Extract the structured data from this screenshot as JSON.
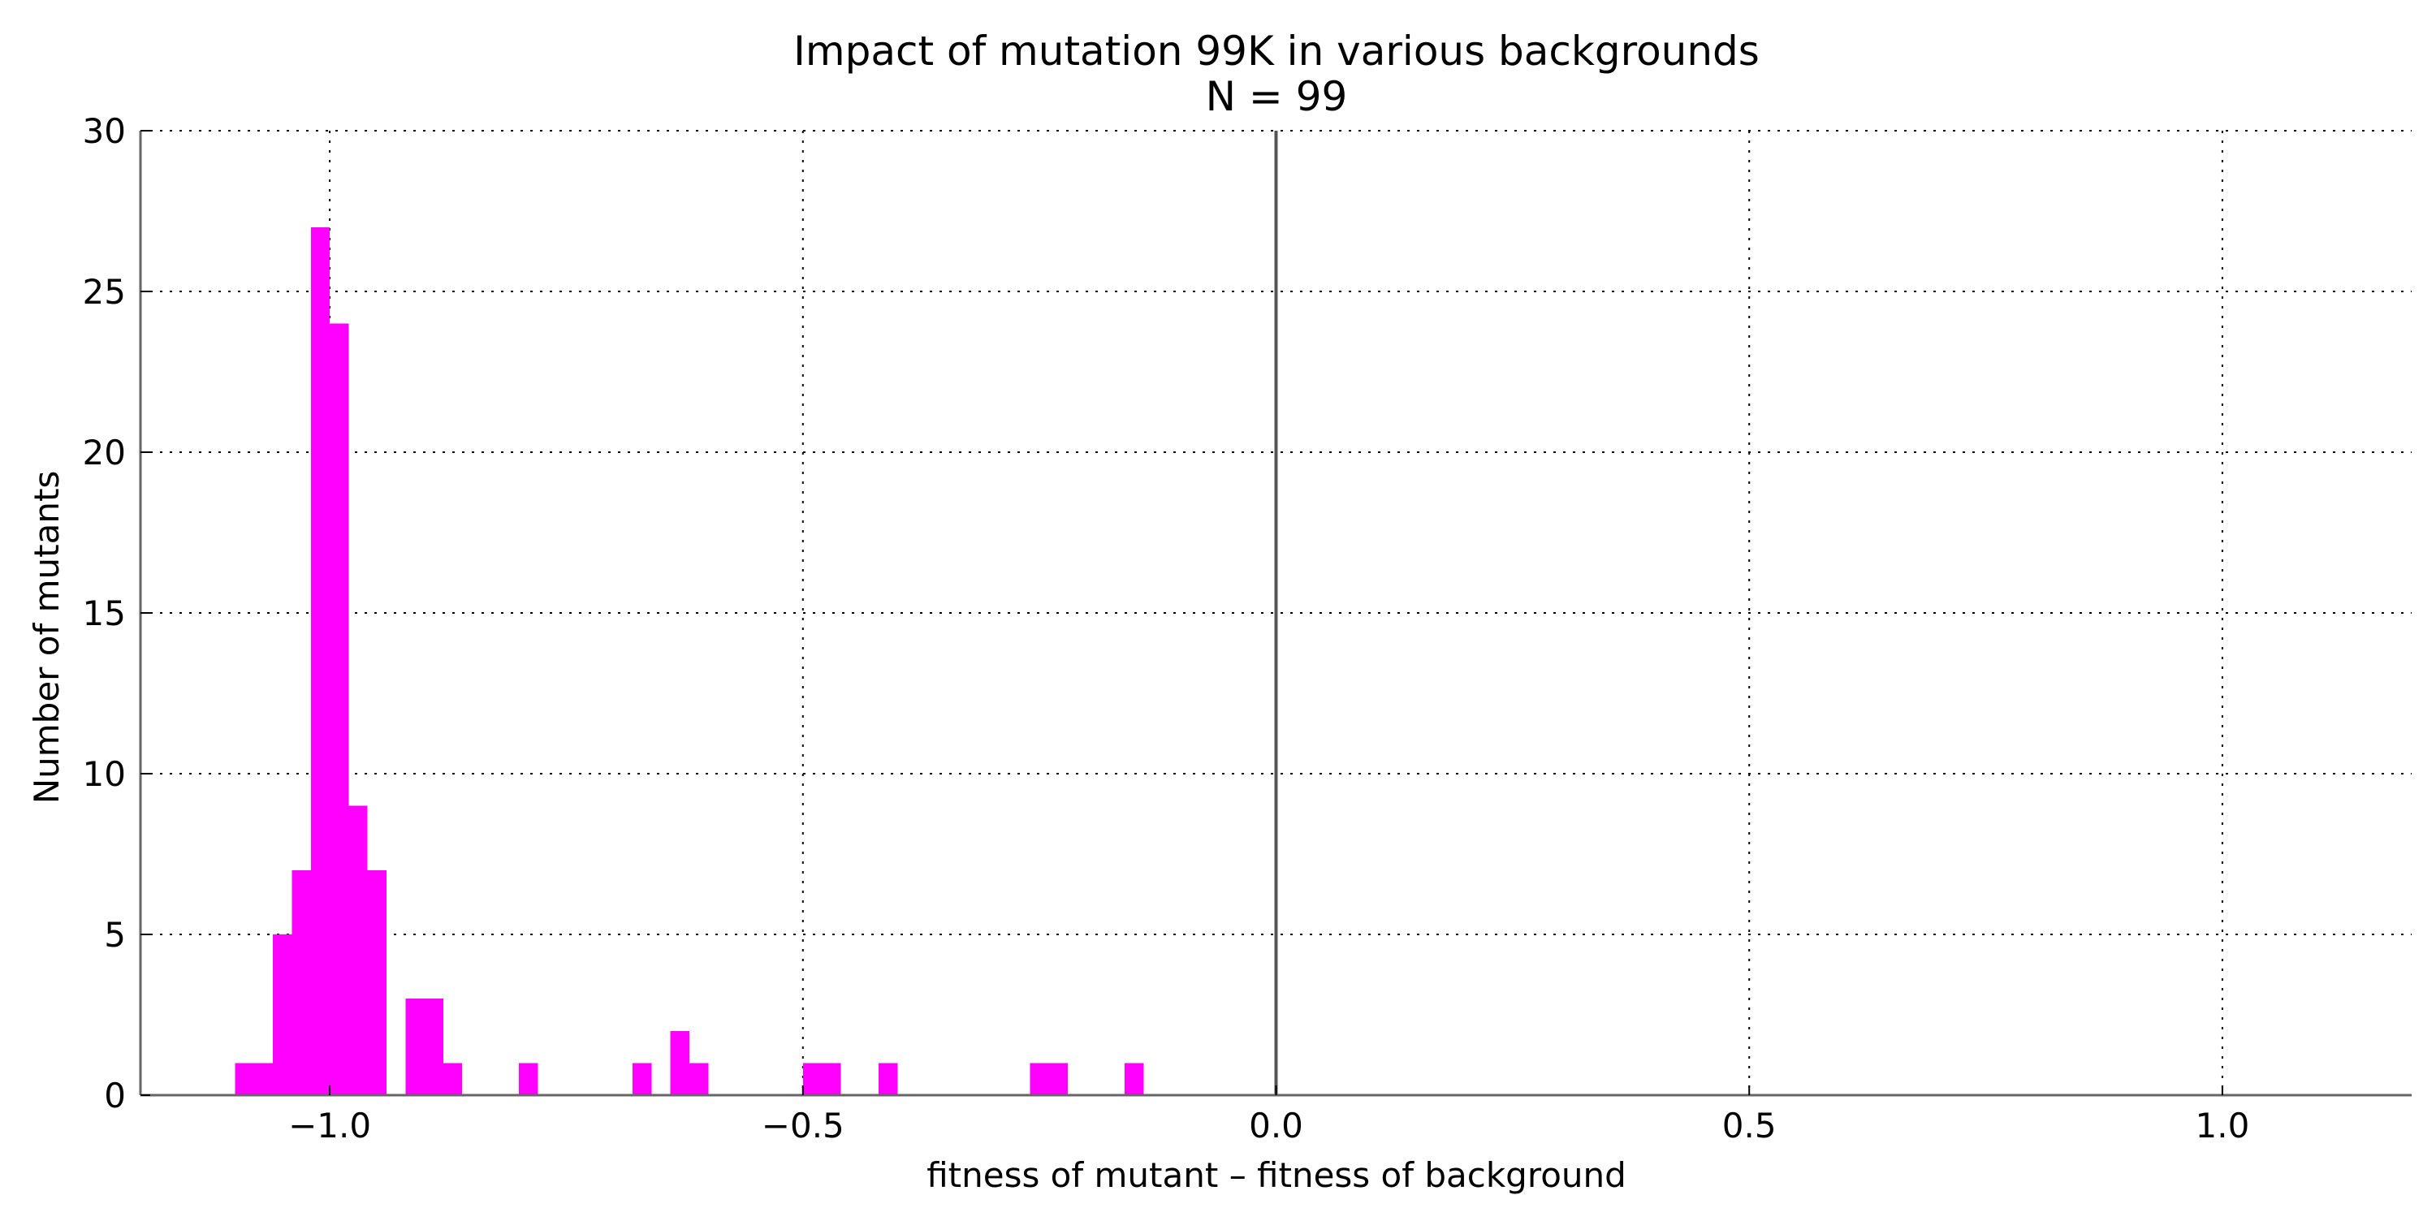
{
  "chart_data": {
    "type": "bar",
    "title": "Impact of mutation 99K in various backgrounds",
    "subtitle": "N = 99",
    "xlabel": "fitness of mutant  –  fitness of background",
    "ylabel": "Number of mutants",
    "xlim": [
      -1.2,
      1.2
    ],
    "ylim": [
      0,
      30
    ],
    "xticks": [
      -1.0,
      -0.5,
      0.0,
      0.5,
      1.0
    ],
    "xtick_labels": [
      "−1.0",
      "−0.5",
      "0.0",
      "0.5",
      "1.0"
    ],
    "yticks": [
      0,
      5,
      10,
      15,
      20,
      25,
      30
    ],
    "ytick_labels": [
      "0",
      "5",
      "10",
      "15",
      "20",
      "25",
      "30"
    ],
    "grid": true,
    "reference_line_x": 0.0,
    "bar_color": "#ff00ff",
    "bin_width": 0.02,
    "bins": [
      {
        "x": -1.1,
        "count": 1
      },
      {
        "x": -1.08,
        "count": 1
      },
      {
        "x": -1.06,
        "count": 5
      },
      {
        "x": -1.04,
        "count": 7
      },
      {
        "x": -1.02,
        "count": 27
      },
      {
        "x": -1.0,
        "count": 24
      },
      {
        "x": -0.98,
        "count": 9
      },
      {
        "x": -0.96,
        "count": 7
      },
      {
        "x": -0.92,
        "count": 3
      },
      {
        "x": -0.9,
        "count": 3
      },
      {
        "x": -0.88,
        "count": 1
      },
      {
        "x": -0.8,
        "count": 1
      },
      {
        "x": -0.68,
        "count": 1
      },
      {
        "x": -0.64,
        "count": 2
      },
      {
        "x": -0.62,
        "count": 1
      },
      {
        "x": -0.5,
        "count": 1
      },
      {
        "x": -0.48,
        "count": 1
      },
      {
        "x": -0.42,
        "count": 1
      },
      {
        "x": -0.26,
        "count": 1
      },
      {
        "x": -0.24,
        "count": 1
      },
      {
        "x": -0.16,
        "count": 1
      }
    ]
  }
}
